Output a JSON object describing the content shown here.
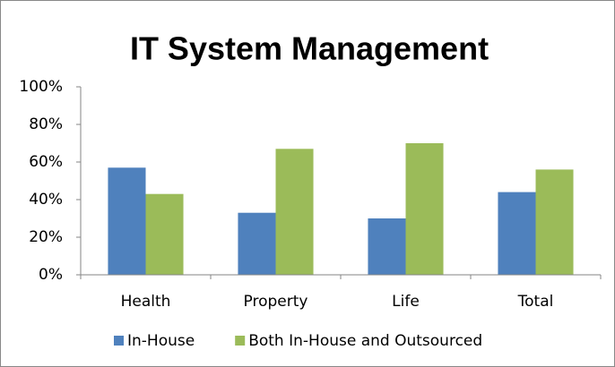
{
  "chart_data": {
    "type": "bar",
    "title": "IT System Management",
    "categories": [
      "Health",
      "Property",
      "Life",
      "Total"
    ],
    "series": [
      {
        "name": "In-House",
        "color": "#4f81bd",
        "values": [
          57,
          33,
          30,
          44
        ]
      },
      {
        "name": "Both In-House and Outsourced",
        "color": "#9bbb59",
        "values": [
          43,
          67,
          70,
          56
        ]
      }
    ],
    "ylim": [
      0,
      100
    ],
    "yticks": [
      {
        "value": 0,
        "label": "0%"
      },
      {
        "value": 20,
        "label": "20%"
      },
      {
        "value": 40,
        "label": "40%"
      },
      {
        "value": 60,
        "label": "60%"
      },
      {
        "value": 80,
        "label": "80%"
      },
      {
        "value": 100,
        "label": "100%"
      }
    ],
    "grid": false,
    "legend": "bottom"
  }
}
